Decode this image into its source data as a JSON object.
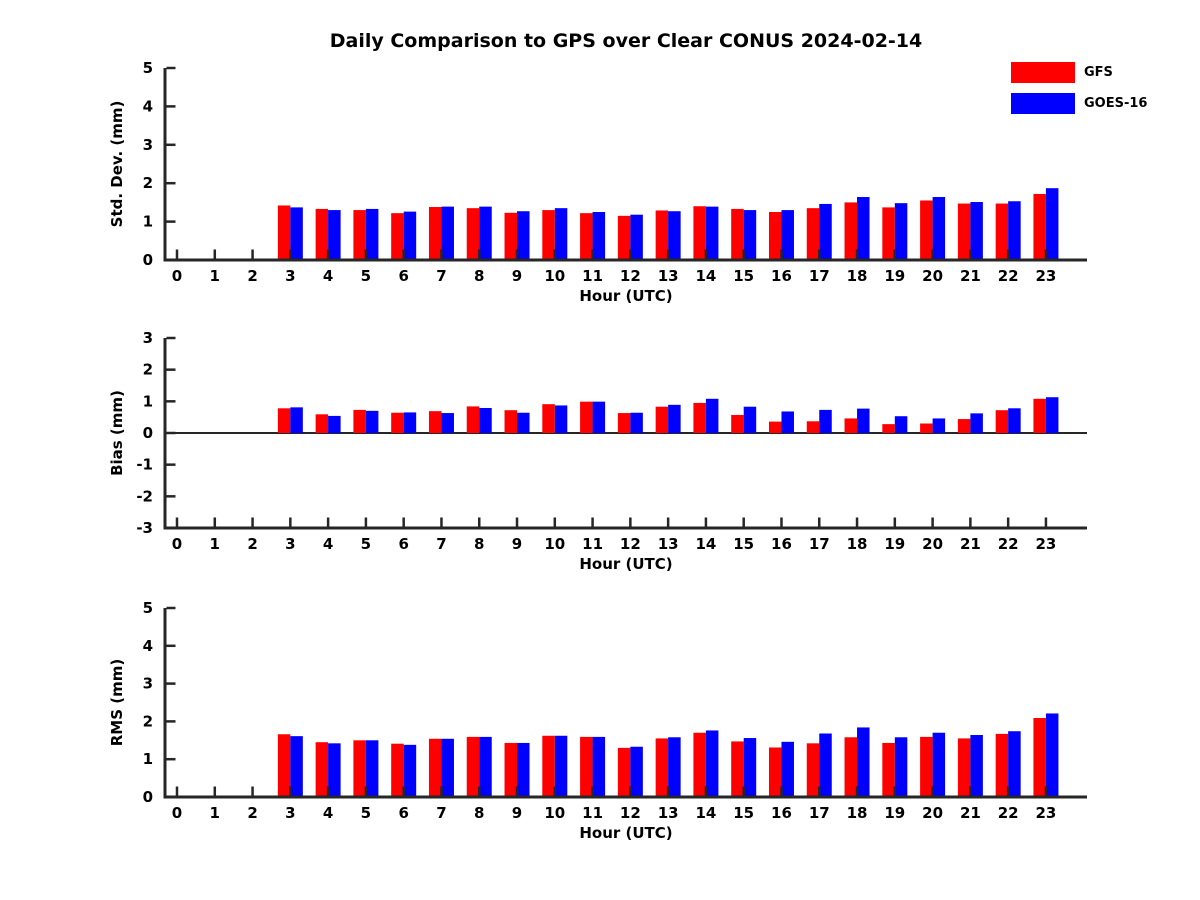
{
  "title": "Daily Comparison to GPS over Clear CONUS 2024-02-14",
  "legend": {
    "position": "top-right",
    "items": [
      {
        "label": "GFS",
        "color": "#ff0000"
      },
      {
        "label": "GOES-16",
        "color": "#0000ff"
      }
    ]
  },
  "colors": {
    "gfs": "#ff0000",
    "goes16": "#0000ff",
    "axis": "#262626",
    "text": "#000000",
    "background": "#ffffff"
  },
  "chart_data": [
    {
      "type": "bar",
      "name": "std-dev",
      "ylabel": "Std. Dev. (mm)",
      "xlabel": "Hour (UTC)",
      "ylim": [
        0,
        5
      ],
      "yticks": [
        0,
        1,
        2,
        3,
        4,
        5
      ],
      "zero_line": false,
      "grid": false,
      "categories": [
        "0",
        "1",
        "2",
        "3",
        "4",
        "5",
        "6",
        "7",
        "8",
        "9",
        "10",
        "11",
        "12",
        "13",
        "14",
        "15",
        "16",
        "17",
        "18",
        "19",
        "20",
        "21",
        "22",
        "23"
      ],
      "series": [
        {
          "name": "GFS",
          "color": "#ff0000",
          "values": [
            null,
            null,
            null,
            1.42,
            1.33,
            1.3,
            1.22,
            1.38,
            1.35,
            1.23,
            1.3,
            1.22,
            1.15,
            1.29,
            1.4,
            1.33,
            1.25,
            1.35,
            1.5,
            1.37,
            1.55,
            1.47,
            1.47,
            1.72
          ]
        },
        {
          "name": "GOES-16",
          "color": "#0000ff",
          "values": [
            null,
            null,
            null,
            1.37,
            1.3,
            1.33,
            1.26,
            1.39,
            1.39,
            1.27,
            1.35,
            1.25,
            1.18,
            1.27,
            1.39,
            1.3,
            1.3,
            1.46,
            1.64,
            1.48,
            1.64,
            1.51,
            1.53,
            1.87
          ]
        }
      ]
    },
    {
      "type": "bar",
      "name": "bias",
      "ylabel": "Bias (mm)",
      "xlabel": "Hour (UTC)",
      "ylim": [
        -3,
        3
      ],
      "yticks": [
        -3,
        -2,
        -1,
        0,
        1,
        2,
        3
      ],
      "zero_line": true,
      "grid": false,
      "categories": [
        "0",
        "1",
        "2",
        "3",
        "4",
        "5",
        "6",
        "7",
        "8",
        "9",
        "10",
        "11",
        "12",
        "13",
        "14",
        "15",
        "16",
        "17",
        "18",
        "19",
        "20",
        "21",
        "22",
        "23"
      ],
      "series": [
        {
          "name": "GFS",
          "color": "#ff0000",
          "values": [
            null,
            null,
            null,
            0.78,
            0.59,
            0.73,
            0.64,
            0.69,
            0.84,
            0.72,
            0.91,
            0.99,
            0.63,
            0.83,
            0.95,
            0.57,
            0.36,
            0.37,
            0.46,
            0.28,
            0.3,
            0.44,
            0.72,
            1.08
          ]
        },
        {
          "name": "GOES-16",
          "color": "#0000ff",
          "values": [
            null,
            null,
            null,
            0.81,
            0.54,
            0.7,
            0.65,
            0.63,
            0.79,
            0.64,
            0.87,
            0.99,
            0.64,
            0.89,
            1.08,
            0.83,
            0.68,
            0.73,
            0.77,
            0.53,
            0.46,
            0.62,
            0.78,
            1.13
          ]
        }
      ]
    },
    {
      "type": "bar",
      "name": "rms",
      "ylabel": "RMS (mm)",
      "xlabel": "Hour (UTC)",
      "ylim": [
        0,
        5
      ],
      "yticks": [
        0,
        1,
        2,
        3,
        4,
        5
      ],
      "zero_line": false,
      "grid": false,
      "categories": [
        "0",
        "1",
        "2",
        "3",
        "4",
        "5",
        "6",
        "7",
        "8",
        "9",
        "10",
        "11",
        "12",
        "13",
        "14",
        "15",
        "16",
        "17",
        "18",
        "19",
        "20",
        "21",
        "22",
        "23"
      ],
      "series": [
        {
          "name": "GFS",
          "color": "#ff0000",
          "values": [
            null,
            null,
            null,
            1.66,
            1.45,
            1.5,
            1.41,
            1.54,
            1.59,
            1.43,
            1.62,
            1.59,
            1.3,
            1.55,
            1.7,
            1.47,
            1.31,
            1.42,
            1.58,
            1.43,
            1.59,
            1.55,
            1.67,
            2.09
          ]
        },
        {
          "name": "GOES-16",
          "color": "#0000ff",
          "values": [
            null,
            null,
            null,
            1.61,
            1.42,
            1.5,
            1.38,
            1.54,
            1.59,
            1.43,
            1.62,
            1.59,
            1.33,
            1.58,
            1.76,
            1.56,
            1.46,
            1.68,
            1.84,
            1.58,
            1.7,
            1.64,
            1.74,
            2.21
          ]
        }
      ]
    }
  ]
}
